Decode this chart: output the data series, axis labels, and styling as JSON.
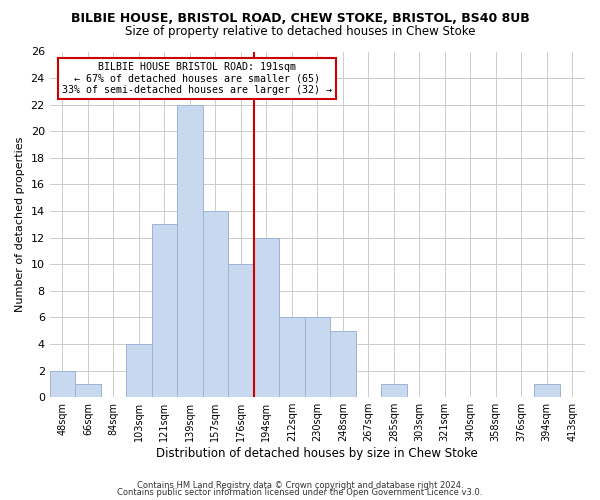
{
  "title": "BILBIE HOUSE, BRISTOL ROAD, CHEW STOKE, BRISTOL, BS40 8UB",
  "subtitle": "Size of property relative to detached houses in Chew Stoke",
  "xlabel": "Distribution of detached houses by size in Chew Stoke",
  "ylabel": "Number of detached properties",
  "bin_labels": [
    "48sqm",
    "66sqm",
    "84sqm",
    "103sqm",
    "121sqm",
    "139sqm",
    "157sqm",
    "176sqm",
    "194sqm",
    "212sqm",
    "230sqm",
    "248sqm",
    "267sqm",
    "285sqm",
    "303sqm",
    "321sqm",
    "340sqm",
    "358sqm",
    "376sqm",
    "394sqm",
    "413sqm"
  ],
  "bar_heights": [
    2,
    1,
    0,
    4,
    13,
    22,
    14,
    10,
    12,
    6,
    6,
    5,
    0,
    1,
    0,
    0,
    0,
    0,
    0,
    1,
    0
  ],
  "bar_color": "#c8d8ef",
  "bar_edge_color": "#9bb5d8",
  "vline_x_index": 8,
  "vline_color": "#cc0000",
  "annotation_line1": "BILBIE HOUSE BRISTOL ROAD: 191sqm",
  "annotation_line2": "← 67% of detached houses are smaller (65)",
  "annotation_line3": "33% of semi-detached houses are larger (32) →",
  "annotation_box_color": "#ffffff",
  "annotation_box_edge": "#cc0000",
  "ylim": [
    0,
    26
  ],
  "yticks": [
    0,
    2,
    4,
    6,
    8,
    10,
    12,
    14,
    16,
    18,
    20,
    22,
    24,
    26
  ],
  "footer1": "Contains HM Land Registry data © Crown copyright and database right 2024.",
  "footer2": "Contains public sector information licensed under the Open Government Licence v3.0.",
  "bg_color": "#ffffff",
  "grid_color": "#cccccc"
}
